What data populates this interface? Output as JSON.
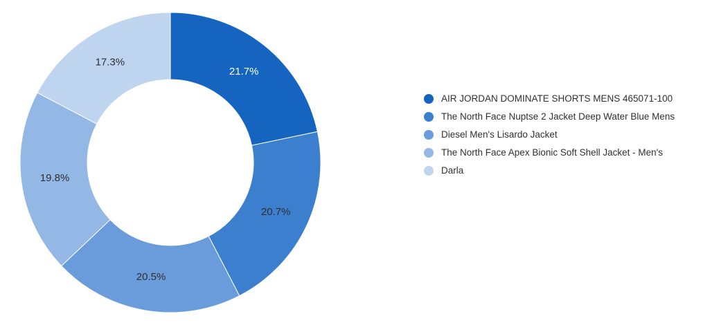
{
  "chart_data": {
    "type": "pie",
    "donut": true,
    "legend_position": "right",
    "categories": [
      "AIR JORDAN DOMINATE SHORTS MENS 465071-100",
      "The North Face Nuptse 2 Jacket Deep Water Blue Mens",
      "Diesel Men's Lisardo Jacket",
      "The North Face Apex Bionic Soft Shell Jacket - Men's",
      "Darla"
    ],
    "values": [
      21.7,
      20.7,
      20.5,
      19.8,
      17.3
    ],
    "data_labels": [
      "21.7%",
      "20.7%",
      "20.5%",
      "19.8%",
      "17.3%"
    ],
    "colors": [
      "#1565c0",
      "#3d7fcf",
      "#6a9cdc",
      "#93b8e6",
      "#bed4ef"
    ],
    "label_colors": [
      "#ffffff",
      "#303030",
      "#303030",
      "#303030",
      "#303030"
    ]
  }
}
